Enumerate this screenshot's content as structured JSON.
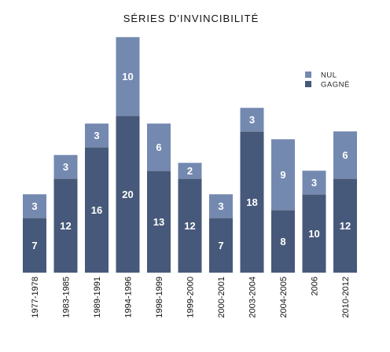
{
  "chart_data": {
    "type": "bar",
    "stacked": true,
    "title": "SÉRIES D'INVINCIBILITÉ",
    "categories": [
      "1977-1978",
      "1983-1985",
      "1989-1991",
      "1994-1996",
      "1998-1999",
      "1999-2000",
      "2000-2001",
      "2003-2004",
      "2004-2005",
      "2006",
      "2010-2012"
    ],
    "series": [
      {
        "name": "GAGNÉ",
        "color": "#47597a",
        "values": [
          7,
          12,
          16,
          20,
          13,
          12,
          7,
          18,
          8,
          10,
          12
        ]
      },
      {
        "name": "NUL",
        "color": "#7489b0",
        "values": [
          3,
          3,
          3,
          10,
          6,
          2,
          3,
          3,
          9,
          3,
          6
        ]
      }
    ],
    "legend_order": [
      "NUL",
      "GAGNÉ"
    ],
    "legend_position": "top-right",
    "ylim": [
      0,
      30
    ],
    "grid": false,
    "y_axis_shown": false
  }
}
